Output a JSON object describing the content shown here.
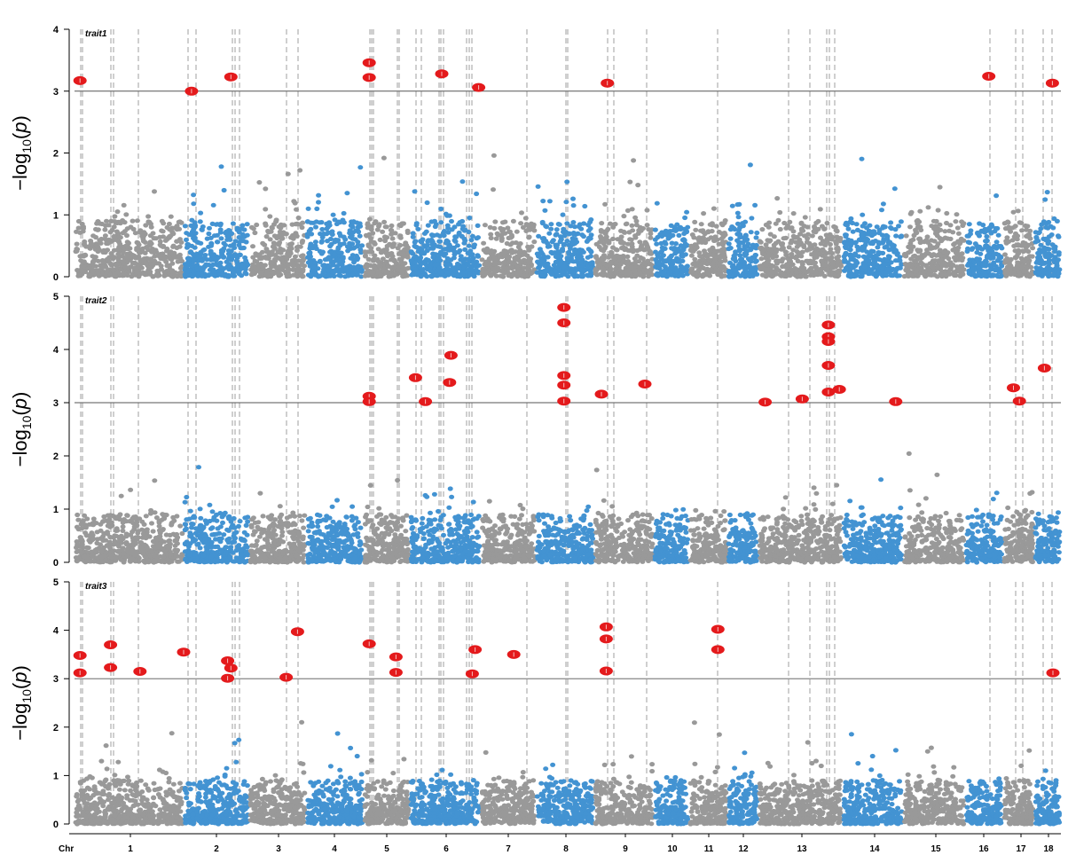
{
  "chart_data": {
    "type": "scatter",
    "subtype": "manhattan",
    "x_axis_prefix": "Chr",
    "chromosomes": [
      "1",
      "2",
      "3",
      "4",
      "5",
      "6",
      "7",
      "8",
      "9",
      "10",
      "11",
      "12",
      "13",
      "14",
      "15",
      "16",
      "17",
      "18"
    ],
    "chromosome_colors": [
      "#999999",
      "#4393d2",
      "#999999",
      "#4393d2",
      "#999999",
      "#4393d2",
      "#999999",
      "#4393d2",
      "#999999",
      "#4393d2",
      "#999999",
      "#4393d2",
      "#999999",
      "#4393d2",
      "#999999",
      "#4393d2",
      "#999999",
      "#4393d2"
    ],
    "highlight_color": "#e41a1c",
    "threshold_color": "#555555",
    "vline_color": "#b5b5b5",
    "ylabel": "-log10(p)",
    "panels": [
      {
        "name": "trait1",
        "ylim": [
          0,
          4
        ],
        "yticks": [
          0,
          1,
          2,
          3,
          4
        ],
        "threshold": 3,
        "significant": [
          {
            "chr": 1,
            "pos": 0.05,
            "y": 3.17
          },
          {
            "chr": 2,
            "pos": 0.12,
            "y": 3.0
          },
          {
            "chr": 2,
            "pos": 0.72,
            "y": 3.23
          },
          {
            "chr": 5,
            "pos": 0.12,
            "y": 3.46
          },
          {
            "chr": 5,
            "pos": 0.12,
            "y": 3.22
          },
          {
            "chr": 6,
            "pos": 0.45,
            "y": 3.28
          },
          {
            "chr": 6,
            "pos": 0.97,
            "y": 3.06
          },
          {
            "chr": 9,
            "pos": 0.22,
            "y": 3.13
          },
          {
            "chr": 16,
            "pos": 0.62,
            "y": 3.24
          },
          {
            "chr": 18,
            "pos": 0.68,
            "y": 3.13
          }
        ]
      },
      {
        "name": "trait2",
        "ylim": [
          0,
          5
        ],
        "yticks": [
          0,
          1,
          2,
          3,
          4,
          5
        ],
        "threshold": 3,
        "significant": [
          {
            "chr": 5,
            "pos": 0.12,
            "y": 3.12
          },
          {
            "chr": 5,
            "pos": 0.12,
            "y": 3.02
          },
          {
            "chr": 6,
            "pos": 0.08,
            "y": 3.47
          },
          {
            "chr": 6,
            "pos": 0.22,
            "y": 3.02
          },
          {
            "chr": 6,
            "pos": 0.56,
            "y": 3.38
          },
          {
            "chr": 6,
            "pos": 0.58,
            "y": 3.89
          },
          {
            "chr": 8,
            "pos": 0.48,
            "y": 4.79
          },
          {
            "chr": 8,
            "pos": 0.48,
            "y": 4.5
          },
          {
            "chr": 8,
            "pos": 0.48,
            "y": 3.51
          },
          {
            "chr": 8,
            "pos": 0.48,
            "y": 3.33
          },
          {
            "chr": 8,
            "pos": 0.48,
            "y": 3.03
          },
          {
            "chr": 9,
            "pos": 0.12,
            "y": 3.16
          },
          {
            "chr": 9,
            "pos": 0.85,
            "y": 3.35
          },
          {
            "chr": 13,
            "pos": 0.08,
            "y": 3.01
          },
          {
            "chr": 13,
            "pos": 0.52,
            "y": 3.07
          },
          {
            "chr": 13,
            "pos": 0.83,
            "y": 4.46
          },
          {
            "chr": 13,
            "pos": 0.83,
            "y": 4.24
          },
          {
            "chr": 13,
            "pos": 0.83,
            "y": 4.15
          },
          {
            "chr": 13,
            "pos": 0.83,
            "y": 3.7
          },
          {
            "chr": 13,
            "pos": 0.83,
            "y": 3.2
          },
          {
            "chr": 13,
            "pos": 0.96,
            "y": 3.25
          },
          {
            "chr": 14,
            "pos": 0.88,
            "y": 3.02
          },
          {
            "chr": 17,
            "pos": 0.33,
            "y": 3.28
          },
          {
            "chr": 17,
            "pos": 0.52,
            "y": 3.03
          },
          {
            "chr": 18,
            "pos": 0.38,
            "y": 3.65
          }
        ]
      },
      {
        "name": "trait3",
        "ylim": [
          0,
          5
        ],
        "yticks": [
          0,
          1,
          2,
          3,
          4,
          5
        ],
        "threshold": 3,
        "significant": [
          {
            "chr": 1,
            "pos": 0.05,
            "y": 3.48
          },
          {
            "chr": 1,
            "pos": 0.05,
            "y": 3.12
          },
          {
            "chr": 1,
            "pos": 0.33,
            "y": 3.7
          },
          {
            "chr": 1,
            "pos": 0.33,
            "y": 3.23
          },
          {
            "chr": 1,
            "pos": 0.6,
            "y": 3.15
          },
          {
            "chr": 1,
            "pos": 1.0,
            "y": 3.55
          },
          {
            "chr": 2,
            "pos": 0.67,
            "y": 3.37
          },
          {
            "chr": 2,
            "pos": 0.72,
            "y": 3.22
          },
          {
            "chr": 2,
            "pos": 0.67,
            "y": 3.01
          },
          {
            "chr": 3,
            "pos": 0.65,
            "y": 3.03
          },
          {
            "chr": 3,
            "pos": 0.85,
            "y": 3.97
          },
          {
            "chr": 5,
            "pos": 0.12,
            "y": 3.72
          },
          {
            "chr": 5,
            "pos": 0.7,
            "y": 3.45
          },
          {
            "chr": 5,
            "pos": 0.7,
            "y": 3.13
          },
          {
            "chr": 6,
            "pos": 0.88,
            "y": 3.1
          },
          {
            "chr": 6,
            "pos": 0.92,
            "y": 3.6
          },
          {
            "chr": 7,
            "pos": 0.6,
            "y": 3.5
          },
          {
            "chr": 9,
            "pos": 0.2,
            "y": 4.07
          },
          {
            "chr": 9,
            "pos": 0.2,
            "y": 3.82
          },
          {
            "chr": 9,
            "pos": 0.2,
            "y": 3.16
          },
          {
            "chr": 11,
            "pos": 0.75,
            "y": 4.02
          },
          {
            "chr": 11,
            "pos": 0.75,
            "y": 3.6
          },
          {
            "chr": 18,
            "pos": 0.7,
            "y": 3.12
          }
        ]
      }
    ]
  }
}
